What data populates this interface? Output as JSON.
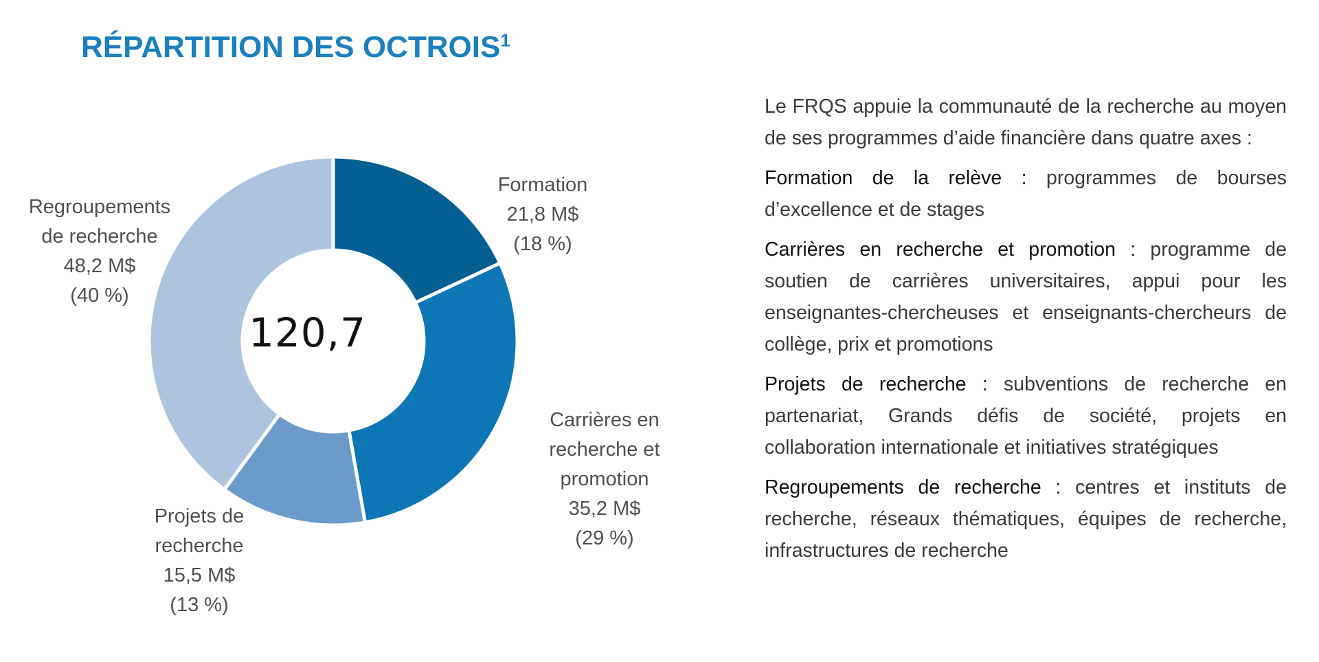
{
  "title": {
    "text": "RÉPARTITION DES OCTROIS",
    "footnote": "1"
  },
  "colors": {
    "title": "#1a80be",
    "slice_separator": "#ffffff"
  },
  "chart_data": {
    "type": "pie",
    "variant": "donut",
    "center_label": "120,7",
    "slices": [
      {
        "name": "Formation",
        "label_lines": [
          "Formation"
        ],
        "amount_text": "21,8 M$",
        "percent_text": "(18 %)",
        "value": 21.8,
        "percent": 18,
        "color": "#065f93"
      },
      {
        "name": "Carrières en recherche et promotion",
        "label_lines": [
          "Carrières en",
          "recherche et",
          "promotion"
        ],
        "amount_text": "35,2 M$",
        "percent_text": "(29 %)",
        "value": 35.2,
        "percent": 29,
        "color": "#0d76b4"
      },
      {
        "name": "Projets de recherche",
        "label_lines": [
          "Projets de",
          "recherche"
        ],
        "amount_text": "15,5 M$",
        "percent_text": "(13 %)",
        "value": 15.5,
        "percent": 13,
        "color": "#6a9bcb"
      },
      {
        "name": "Regroupements de recherche",
        "label_lines": [
          "Regroupements",
          "de recherche"
        ],
        "amount_text": "48,2 M$",
        "percent_text": "(40 %)",
        "value": 48.2,
        "percent": 40,
        "color": "#aec3de"
      }
    ]
  },
  "description": {
    "intro": "Le FRQS appuie la communauté de la recherche au moyen de ses programmes d’aide financière dans quatre axes :",
    "axes": [
      {
        "term": "Formation de la relève :",
        "text": " programmes de bourses d’excellence et de stages"
      },
      {
        "term": "Carrières en recherche et promotion :",
        "text": " programme de soutien de carrières universitaires, appui pour les enseignantes-chercheuses et enseignants-chercheurs de collège, prix et promotions"
      },
      {
        "term": "Projets de recherche :",
        "text": " subventions de recherche en partenariat, Grands défis de société, projets en collaboration internationale et initiatives stratégiques"
      },
      {
        "term": "Regroupements de recherche :",
        "text": " centres et instituts de recherche, réseaux thématiques, équipes de recherche, infrastructures de recherche"
      }
    ]
  }
}
